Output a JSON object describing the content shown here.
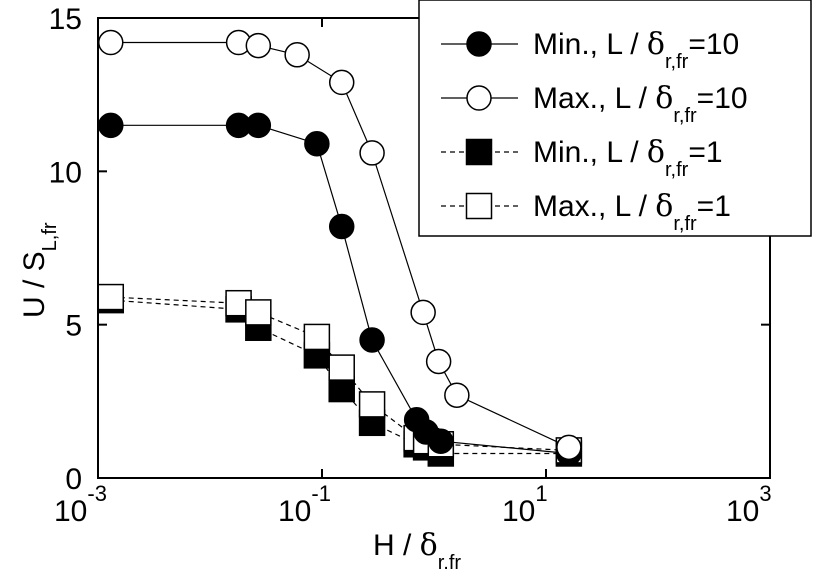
{
  "chart_data": {
    "type": "scatter",
    "x_scale": "log",
    "xlim": [
      0.001,
      1000
    ],
    "ylim": [
      0,
      15
    ],
    "xticks": [
      {
        "value": 0.001,
        "base": "10",
        "exp": "-3"
      },
      {
        "value": 0.1,
        "base": "10",
        "exp": "-1"
      },
      {
        "value": 10,
        "base": "10",
        "exp": "1"
      },
      {
        "value": 1000,
        "base": "10",
        "exp": "3"
      }
    ],
    "yticks": [
      {
        "value": 0,
        "label": "0"
      },
      {
        "value": 5,
        "label": "5"
      },
      {
        "value": 10,
        "label": "10"
      },
      {
        "value": 15,
        "label": "15"
      }
    ],
    "xlabel": {
      "main": "H / ",
      "greek": "δ",
      "sub": "r,fr"
    },
    "ylabel": {
      "main": "U / S",
      "sub": "L,fr"
    },
    "grid": false,
    "legend_position": "top-right",
    "series": [
      {
        "name": "Min., L / δr,fr=10",
        "legend": {
          "text": "Min., L / ",
          "greek": "δ",
          "sub": "r,fr",
          "suffix": "=10"
        },
        "marker": "circle-filled",
        "line": "solid",
        "x": [
          0.0013,
          0.018,
          0.027,
          0.09,
          0.15,
          0.28,
          0.7,
          0.85,
          1.15,
          16
        ],
        "y": [
          11.5,
          11.5,
          11.5,
          10.9,
          8.2,
          4.5,
          1.9,
          1.5,
          1.2,
          0.8
        ]
      },
      {
        "name": "Max., L / δr,fr=10",
        "legend": {
          "text": "Max., L / ",
          "greek": "δ",
          "sub": "r,fr",
          "suffix": "=10"
        },
        "marker": "circle-open",
        "line": "solid",
        "x": [
          0.0013,
          0.018,
          0.027,
          0.06,
          0.15,
          0.28,
          0.8,
          1.1,
          1.6,
          16
        ],
        "y": [
          14.2,
          14.2,
          14.1,
          13.8,
          12.9,
          10.6,
          5.4,
          3.8,
          2.7,
          1.0
        ]
      },
      {
        "name": "Min., L / δr,fr=1",
        "legend": {
          "text": "Min., L / ",
          "greek": "δ",
          "sub": "r,fr",
          "suffix": "=1"
        },
        "marker": "square-filled",
        "line": "dashed",
        "x": [
          0.0013,
          0.018,
          0.027,
          0.09,
          0.15,
          0.28,
          0.7,
          0.85,
          1.15,
          16
        ],
        "y": [
          5.8,
          5.5,
          4.9,
          4.0,
          2.9,
          1.8,
          1.1,
          1.0,
          0.8,
          0.8
        ]
      },
      {
        "name": "Max., L / δr,fr=1",
        "legend": {
          "text": "Max., L / ",
          "greek": "δ",
          "sub": "r,fr",
          "suffix": "=1"
        },
        "marker": "square-open",
        "line": "dashed",
        "x": [
          0.0013,
          0.018,
          0.027,
          0.09,
          0.15,
          0.28,
          0.7,
          0.85,
          1.15,
          16
        ],
        "y": [
          5.9,
          5.7,
          5.4,
          4.6,
          3.6,
          2.4,
          1.3,
          1.2,
          1.1,
          0.9
        ]
      }
    ]
  }
}
